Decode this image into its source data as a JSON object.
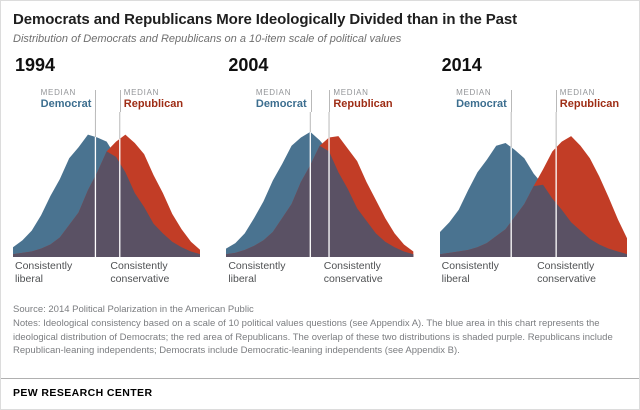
{
  "header": {
    "title": "Democrats and Republicans More Ideologically Divided than in the Past",
    "subtitle": "Distribution of Democrats and Republicans on a 10-item scale of political values"
  },
  "labels": {
    "median": "MEDIAN"
  },
  "colors": {
    "democrat": "#4a7390",
    "republican": "#c23d26",
    "overlap": "#5a5164",
    "democrat_text": "#3c6e8f",
    "republican_text": "#9e2d15",
    "median_line": "#b9b9b9",
    "median_line_over_area": "#ffffff"
  },
  "chart_data": [
    {
      "type": "area",
      "title": "1994",
      "x_axis": {
        "left": "Consistently liberal",
        "right": "Consistently conservative"
      },
      "y_note": "Share of party at each position on 10-item ideological consistency scale (no visible y axis)",
      "series": [
        {
          "name": "Democrat",
          "color": "#4a7390",
          "values": [
            7,
            12,
            19,
            30,
            44,
            56,
            71,
            79,
            88,
            86,
            83,
            72,
            61,
            46,
            36,
            24,
            17,
            11,
            7,
            4,
            2
          ]
        },
        {
          "name": "Republican",
          "color": "#c23d26",
          "values": [
            2,
            3,
            4,
            6,
            9,
            14,
            23,
            32,
            48,
            61,
            76,
            83,
            88,
            82,
            74,
            59,
            46,
            31,
            20,
            11,
            5
          ]
        }
      ],
      "median_democrat_frac": 0.44,
      "median_republican_frac": 0.57
    },
    {
      "type": "area",
      "title": "2004",
      "x_axis": {
        "left": "Consistently liberal",
        "right": "Consistently conservative"
      },
      "y_note": "Share of party at each position on 10-item ideological consistency scale (no visible y axis)",
      "series": [
        {
          "name": "Democrat",
          "color": "#4a7390",
          "values": [
            6,
            10,
            17,
            28,
            40,
            55,
            67,
            80,
            86,
            90,
            84,
            76,
            61,
            49,
            35,
            26,
            17,
            11,
            7,
            4,
            2
          ]
        },
        {
          "name": "Republican",
          "color": "#c23d26",
          "values": [
            2,
            3,
            5,
            8,
            12,
            18,
            28,
            38,
            54,
            66,
            80,
            86,
            87,
            78,
            69,
            54,
            41,
            28,
            17,
            9,
            4
          ]
        }
      ],
      "median_democrat_frac": 0.45,
      "median_republican_frac": 0.55
    },
    {
      "type": "area",
      "title": "2014",
      "x_axis": {
        "left": "Consistently liberal",
        "right": "Consistently conservative"
      },
      "y_note": "Share of party at each position on 10-item ideological consistency scale (no visible y axis)",
      "series": [
        {
          "name": "Democrat",
          "color": "#4a7390",
          "values": [
            18,
            25,
            34,
            48,
            61,
            70,
            80,
            82,
            77,
            71,
            60,
            52,
            42,
            34,
            25,
            19,
            13,
            9,
            6,
            4,
            2
          ]
        },
        {
          "name": "Republican",
          "color": "#c23d26",
          "values": [
            2,
            3,
            4,
            5,
            7,
            10,
            15,
            20,
            29,
            38,
            51,
            63,
            76,
            83,
            87,
            80,
            71,
            58,
            43,
            27,
            13
          ]
        }
      ],
      "median_democrat_frac": 0.38,
      "median_republican_frac": 0.62
    }
  ],
  "notes": {
    "source": "Source: 2014 Political Polarization in the American Public",
    "body": "Notes: Ideological consistency based on a scale of 10 political values questions (see Appendix A). The blue area in this chart represents the ideological distribution of Democrats; the red area of Republicans. The overlap of these two distributions is shaded purple. Republicans include Republican-leaning independents; Democrats include Democratic-leaning independents (see Appendix B)."
  },
  "footer": {
    "brand": "PEW RESEARCH CENTER"
  }
}
